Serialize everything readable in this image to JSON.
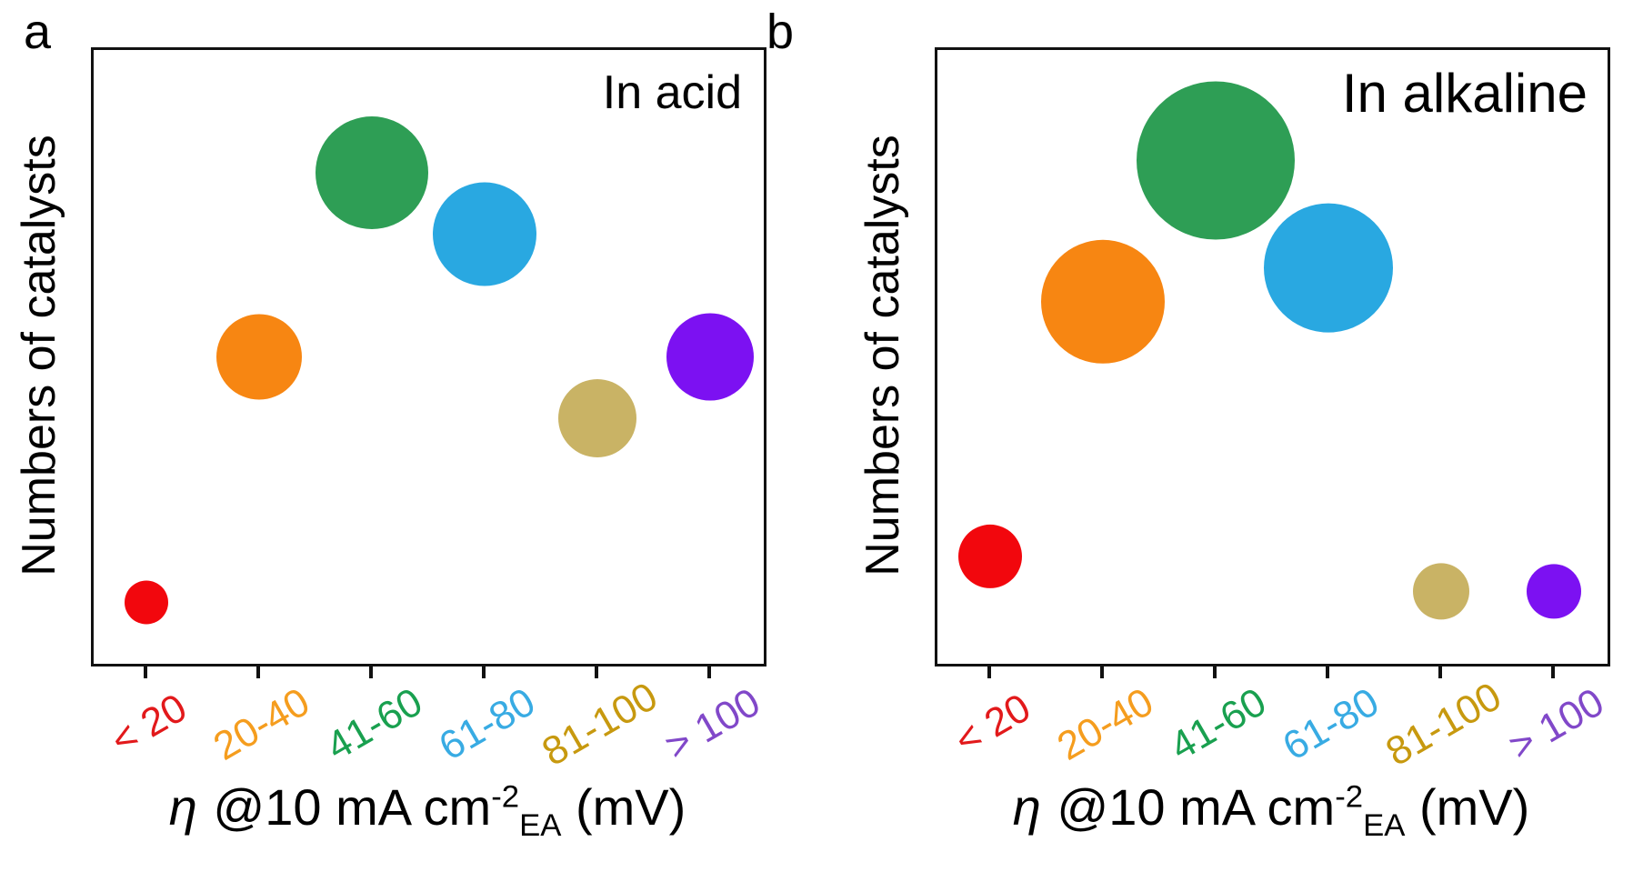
{
  "figure": {
    "background": "#FFFFFF",
    "frame_color": "#111111",
    "panels": [
      {
        "letter": "a",
        "inset_label": "In acid",
        "ylabel": "Numbers of catalysts",
        "xlabel": {
          "eta": "η",
          "mid": " @10 mA cm",
          "sup": "-2",
          "sub": "EA",
          "end": " (mV)"
        }
      },
      {
        "letter": "b",
        "inset_label": "In alkaline",
        "ylabel": "Numbers of catalysts",
        "xlabel": {
          "eta": "η",
          "mid": " @10 mA cm",
          "sup": "-2",
          "sub": "EA",
          "end": " (mV)"
        }
      }
    ]
  },
  "chart_data": [
    {
      "type": "scatter",
      "subtype": "bubble",
      "panel": "a",
      "title": "In acid",
      "xlabel": "η @10 mA cm-2(EA) (mV)",
      "ylabel": "Numbers of catalysts",
      "x_categories": [
        "< 20",
        "20-40",
        "41-60",
        "61-80",
        "81-100",
        "> 100"
      ],
      "y_axis": {
        "numeric_ticks": false,
        "meaning": "relative number of catalysts, encoded by bubble height and bubble size"
      },
      "legend": "none",
      "grid": false,
      "points": [
        {
          "category": "< 20",
          "rel_height": 0.1,
          "bubble_radius_px": 24,
          "bubble_color": "#F2070D",
          "tick_label_color": "#E2191B"
        },
        {
          "category": "20-40",
          "rel_height": 0.5,
          "bubble_radius_px": 47,
          "bubble_color": "#F78612",
          "tick_label_color": "#F59D1E"
        },
        {
          "category": "41-60",
          "rel_height": 0.8,
          "bubble_radius_px": 62,
          "bubble_color": "#2E9E55",
          "tick_label_color": "#19A04F"
        },
        {
          "category": "61-80",
          "rel_height": 0.7,
          "bubble_radius_px": 57,
          "bubble_color": "#29A8E1",
          "tick_label_color": "#38ABE3"
        },
        {
          "category": "81-100",
          "rel_height": 0.4,
          "bubble_radius_px": 43,
          "bubble_color": "#C9B365",
          "tick_label_color": "#C7990F"
        },
        {
          "category": "> 100",
          "rel_height": 0.5,
          "bubble_radius_px": 48,
          "bubble_color": "#7C11F2",
          "tick_label_color": "#8148C9"
        }
      ]
    },
    {
      "type": "scatter",
      "subtype": "bubble",
      "panel": "b",
      "title": "In alkaline",
      "xlabel": "η @10 mA cm-2(EA) (mV)",
      "ylabel": "Numbers of catalysts",
      "x_categories": [
        "< 20",
        "20-40",
        "41-60",
        "61-80",
        "81-100",
        "> 100"
      ],
      "y_axis": {
        "numeric_ticks": false,
        "meaning": "relative number of catalysts, encoded by bubble height and bubble size"
      },
      "legend": "none",
      "grid": false,
      "points": [
        {
          "category": "< 20",
          "rel_height": 0.175,
          "bubble_radius_px": 35,
          "bubble_color": "#F2070D",
          "tick_label_color": "#E2191B"
        },
        {
          "category": "20-40",
          "rel_height": 0.59,
          "bubble_radius_px": 68,
          "bubble_color": "#F78612",
          "tick_label_color": "#F59D1E"
        },
        {
          "category": "41-60",
          "rel_height": 0.82,
          "bubble_radius_px": 87,
          "bubble_color": "#2E9E55",
          "tick_label_color": "#19A04F"
        },
        {
          "category": "61-80",
          "rel_height": 0.645,
          "bubble_radius_px": 71,
          "bubble_color": "#29A8E1",
          "tick_label_color": "#38ABE3"
        },
        {
          "category": "81-100",
          "rel_height": 0.118,
          "bubble_radius_px": 31,
          "bubble_color": "#C9B365",
          "tick_label_color": "#C7990F"
        },
        {
          "category": "> 100",
          "rel_height": 0.118,
          "bubble_radius_px": 30,
          "bubble_color": "#7C11F2",
          "tick_label_color": "#8148C9"
        }
      ]
    }
  ]
}
